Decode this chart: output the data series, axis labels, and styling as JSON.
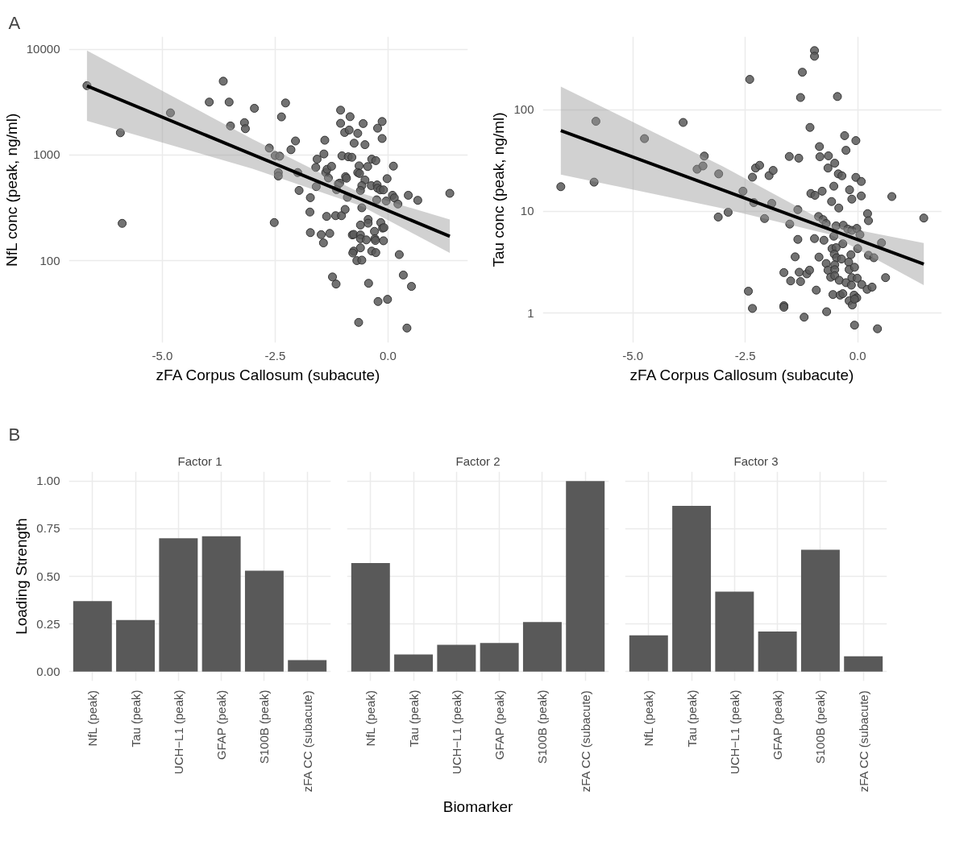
{
  "chart_data": [
    {
      "type": "scatter",
      "annotations": [
        "A"
      ],
      "xlabel": "zFA Corpus Callosum (subacute)",
      "ylabel": "NfL conc (peak, ng/ml)",
      "log": "y",
      "grid": true,
      "xlim": [
        -7.07,
        1.77
      ],
      "ylim": [
        16.7,
        13150
      ],
      "xticks": [
        {
          "value": -5,
          "label": "-5.0"
        },
        {
          "value": -2.5,
          "label": "-2.5"
        },
        {
          "value": 0,
          "label": "0.0"
        }
      ],
      "yticks": [
        100,
        1000,
        10000
      ],
      "series": [
        {
          "type": "scatter",
          "color": "#595959",
          "marker": "circle",
          "x": [
            -6.67,
            -5.93,
            -5.89,
            -4.82,
            -3.65,
            -3.96,
            -3.52,
            -2.96,
            -3.49,
            -3.18,
            -3.16,
            -2.27,
            -2.36,
            -2.63,
            -2.5,
            -2.4,
            -2.43,
            -2.43,
            -2.52,
            -2.05,
            -2.15,
            -2.0,
            -1.97,
            -1.72,
            -1.73,
            -1.72,
            -1.48,
            -1.43,
            -1.29,
            -1.59,
            -1.6,
            -1.57,
            -1.4,
            -1.42,
            -1.38,
            -1.35,
            -1.25,
            -1.32,
            -1.36,
            -1.16,
            -1.03,
            -0.95,
            -1.23,
            -1.15,
            -1.05,
            -0.84,
            -1.05,
            -0.96,
            -0.86,
            -0.67,
            -0.55,
            -0.75,
            -0.51,
            -0.13,
            -0.23,
            -0.13,
            -1.02,
            -0.88,
            -0.8,
            -0.64,
            -0.45,
            -0.67,
            -0.63,
            -0.36,
            -0.27,
            0.12,
            -0.94,
            -0.92,
            -0.51,
            -0.58,
            -0.37,
            -0.24,
            -0.23,
            -0.17,
            -0.1,
            -0.02,
            -1.1,
            -1.07,
            -1.14,
            -0.9,
            -0.61,
            -0.58,
            -0.25,
            -0.04,
            0.1,
            0.14,
            0.22,
            0.45,
            0.66,
            1.37,
            -0.61,
            -0.44,
            -0.44,
            -0.16,
            -0.12,
            -0.09,
            -0.3,
            -0.79,
            -0.76,
            -0.61,
            -0.61,
            -0.48,
            -0.29,
            -0.28,
            -0.1,
            -0.76,
            -0.78,
            -0.61,
            -0.36,
            -0.27,
            0.25,
            -0.69,
            -0.58,
            0.34,
            0.52,
            -0.43,
            -0.22,
            -0.01,
            -0.65,
            0.42
          ],
          "values": [
            4520,
            1620,
            225,
            2500,
            4980,
            3160,
            3160,
            2760,
            1880,
            2020,
            1770,
            3100,
            2290,
            1160,
            985,
            973,
            681,
            631,
            229,
            1355,
            1120,
            681,
            461,
            394,
            288,
            184,
            176,
            147,
            181,
            501,
            762,
            912,
            1377,
            1021,
            681,
            731,
            780,
            605,
            262,
            266,
            266,
            305,
            70,
            60,
            2650,
            2300,
            1990,
            1630,
            1720,
            1600,
            1980,
            1290,
            1250,
            2070,
            1790,
            1430,
            980,
            960,
            950,
            788,
            776,
            681,
            667,
            912,
            883,
            783,
            622,
            602,
            579,
            512,
            512,
            520,
            484,
            467,
            467,
            596,
            533,
            541,
            469,
            397,
            461,
            316,
            376,
            366,
            415,
            392,
            343,
            415,
            372,
            433,
            217,
            245,
            226,
            229,
            203,
            205,
            189,
            175,
            177,
            175,
            161,
            157,
            161,
            155,
            154,
            123,
            118,
            132,
            123,
            119,
            114,
            100,
            101,
            73,
            57,
            61,
            41,
            43,
            26,
            23
          ]
        },
        {
          "type": "line",
          "color": "#000000",
          "x": [
            -6.67,
            -3.0,
            -0.6,
            1.37
          ],
          "values": [
            4500,
            1007,
            380,
            170
          ],
          "lower": [
            2100,
            740,
            330,
            118
          ],
          "upper": [
            9700,
            1410,
            435,
            245
          ]
        }
      ]
    },
    {
      "type": "scatter",
      "xlabel": "zFA Corpus Callosum (subacute)",
      "ylabel": "Tau conc (peak, ng/ml)",
      "log": "y",
      "grid": true,
      "xlim": [
        -7.0,
        1.87
      ],
      "ylim": [
        0.51,
        524
      ],
      "xticks": [
        {
          "value": -5,
          "label": "-5.0"
        },
        {
          "value": -2.5,
          "label": "-2.5"
        },
        {
          "value": 0,
          "label": "0.0"
        }
      ],
      "yticks": [
        1,
        10,
        100
      ],
      "series": [
        {
          "type": "scatter",
          "color": "#595959",
          "marker": "circle",
          "x": [
            -6.6,
            -5.82,
            -5.86,
            -4.74,
            -3.88,
            -3.41,
            -3.57,
            -3.44,
            -3.09,
            -3.1,
            -2.88,
            -2.4,
            -2.55,
            -2.34,
            -2.27,
            -2.18,
            -1.97,
            -1.88,
            -2.31,
            -2.07,
            -2.43,
            -2.34,
            -1.64,
            -1.64,
            -1.64,
            -1.49,
            -1.39,
            -1.33,
            -1.51,
            -1.33,
            -1.91,
            -1.52,
            -1.31,
            -1.23,
            -1.27,
            -0.96,
            -0.96,
            -0.45,
            -1.06,
            -1.3,
            -1.13,
            -1.07,
            -1.27,
            -1.19,
            -0.92,
            -0.69,
            -0.96,
            -0.75,
            -0.86,
            -1.04,
            -0.95,
            -0.79,
            -0.85,
            -0.84,
            -0.65,
            -0.66,
            -0.51,
            -0.29,
            -0.04,
            -0.26,
            -0.43,
            -0.35,
            -0.04,
            0.08,
            -0.53,
            -0.18,
            0.08,
            -0.13,
            -0.58,
            -0.42,
            0.22,
            0.24,
            0.76,
            1.47,
            -0.87,
            -0.77,
            -0.7,
            -0.48,
            -0.32,
            -0.22,
            -0.13,
            -0.02,
            -0.53,
            0.05,
            -0.33,
            0.0,
            -0.57,
            -0.48,
            -0.52,
            -0.47,
            -0.36,
            -0.15,
            0.24,
            0.36,
            0.53,
            -0.7,
            -0.2,
            -0.51,
            -0.66,
            -0.51,
            -0.19,
            -0.07,
            -0.6,
            -0.51,
            -0.41,
            -0.26,
            -0.13,
            -0.01,
            -0.14,
            0.09,
            0.21,
            0.32,
            0.62,
            -0.55,
            -0.39,
            -0.33,
            -0.08,
            -0.02,
            -0.19,
            -0.12,
            -0.07,
            -0.07,
            0.44
          ],
          "values": [
            17.5,
            77,
            19.4,
            52,
            75,
            35,
            26,
            28,
            23.4,
            8.8,
            9.8,
            199,
            15.8,
            21.7,
            26.7,
            28.4,
            22.5,
            25.3,
            12.2,
            8.5,
            1.64,
            1.11,
            1.18,
            1.14,
            2.5,
            2.07,
            3.57,
            5.3,
            7.5,
            10.4,
            12.0,
            34.7,
            33.4,
            234,
            132,
            382,
            336,
            135,
            67,
            2.52,
            2.43,
            2.64,
            2.04,
            0.91,
            1.68,
            1.03,
            5.4,
            5.2,
            3.55,
            15.0,
            14.4,
            15.8,
            43.4,
            34.5,
            35.2,
            26.7,
            29.8,
            55.6,
            49.7,
            39.9,
            23.4,
            22.4,
            21.6,
            19.7,
            17.7,
            16.3,
            14.2,
            13.2,
            12.5,
            10.8,
            9.5,
            8.1,
            14.0,
            8.6,
            8.9,
            8.3,
            7.6,
            7.2,
            7.3,
            6.7,
            6.5,
            6.8,
            5.7,
            5.9,
            4.8,
            4.3,
            4.3,
            4.4,
            3.8,
            3.5,
            3.4,
            3.75,
            3.7,
            3.5,
            4.9,
            3.07,
            3.17,
            2.98,
            2.64,
            2.67,
            2.68,
            2.82,
            2.25,
            2.33,
            2.1,
            1.99,
            2.23,
            2.2,
            1.88,
            1.91,
            1.71,
            1.8,
            2.23,
            1.52,
            1.5,
            1.55,
            1.5,
            1.41,
            1.32,
            1.2,
            1.37,
            0.76,
            0.7
          ]
        },
        {
          "type": "line",
          "color": "#000000",
          "x": [
            -6.6,
            -3.0,
            -0.6,
            1.47
          ],
          "values": [
            62.5,
            16.2,
            6.6,
            3.03
          ],
          "lower": [
            23,
            10.7,
            5.9,
            1.88
          ],
          "upper": [
            169,
            27.8,
            7.4,
            4.87
          ]
        }
      ]
    },
    {
      "type": "bar",
      "title": "Factor 1",
      "annotations": [
        "B"
      ],
      "ylabel": "Loading Strength",
      "grid": true,
      "color": "#595959",
      "categories": [
        "NfL (peak)",
        "Tau (peak)",
        "UCH−L1 (peak)",
        "GFAP (peak)",
        "S100B (peak)",
        "zFA CC (subacute)"
      ],
      "values": [
        0.37,
        0.27,
        0.7,
        0.71,
        0.53,
        0.06
      ],
      "ylim": [
        -0.05,
        1.05
      ],
      "yticks": [
        {
          "value": 0,
          "label": "0.00"
        },
        {
          "value": 0.25,
          "label": "0.25"
        },
        {
          "value": 0.5,
          "label": "0.50"
        },
        {
          "value": 0.75,
          "label": "0.75"
        },
        {
          "value": 1,
          "label": "1.00"
        }
      ]
    },
    {
      "type": "bar",
      "title": "Factor 2",
      "xlabel": "Biomarker",
      "grid": true,
      "color": "#595959",
      "tick_labels": "x",
      "categories": [
        "NfL (peak)",
        "Tau (peak)",
        "UCH−L1 (peak)",
        "GFAP (peak)",
        "S100B (peak)",
        "zFA CC (subacute)"
      ],
      "values": [
        0.57,
        0.09,
        0.14,
        0.15,
        0.26,
        1.0
      ],
      "ylim": [
        -0.05,
        1.05
      ],
      "yticks": [
        0,
        0.25,
        0.5,
        0.75,
        1
      ]
    },
    {
      "type": "bar",
      "title": "Factor 3",
      "grid": true,
      "color": "#595959",
      "tick_labels": "x",
      "categories": [
        "NfL (peak)",
        "Tau (peak)",
        "UCH−L1 (peak)",
        "GFAP (peak)",
        "S100B (peak)",
        "zFA CC (subacute)"
      ],
      "values": [
        0.19,
        0.87,
        0.42,
        0.21,
        0.64,
        0.08
      ],
      "ylim": [
        -0.05,
        1.05
      ],
      "yticks": [
        0,
        0.25,
        0.5,
        0.75,
        1
      ]
    }
  ]
}
